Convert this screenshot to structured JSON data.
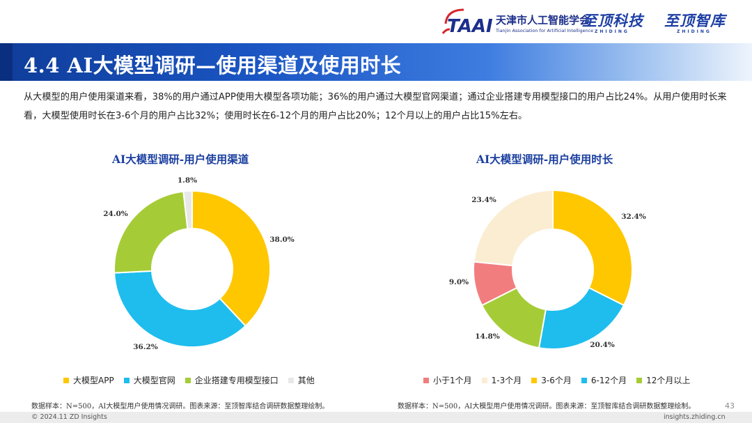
{
  "header": {
    "tjaai_name": "天津市人工智能学会",
    "tjaai_en": "Tianjin Association for Artificial Intelligence",
    "tjaai_mark": "TAAI",
    "brand1_cn": "至顶科技",
    "brand1_en": "ZHIDING",
    "brand2_cn": "至顶智库",
    "brand2_en": "ZHIDING"
  },
  "title": "4.4 AI大模型调研—使用渠道及使用时长",
  "summary": "从大模型的用户使用渠道来看，38%的用户通过APP使用大模型各项功能；36%的用户通过大模型官网渠道；通过企业搭建专用模型接口的用户占比24%。从用户使用时长来看，大模型使用时长在3-6个月的用户占比32%；使用时长在6-12个月的用户占比20%；12个月以上的用户占比15%左右。",
  "chart_data": [
    {
      "type": "pie",
      "title": "AI大模型调研-用户使用渠道",
      "categories": [
        "大模型APP",
        "大模型官网",
        "企业搭建专用模型接口",
        "其他"
      ],
      "values": [
        38.0,
        36.2,
        24.0,
        1.8
      ],
      "value_labels": [
        "38.0%",
        "36.2%",
        "24.0%",
        "1.8%"
      ],
      "colors": [
        "#FFC700",
        "#1EBDED",
        "#A5CC37",
        "#E8E8E8"
      ],
      "donut": true,
      "start": "12 o'clock",
      "direction": "clockwise",
      "legend": "bottom"
    },
    {
      "type": "pie",
      "title": "AI大模型调研-用户使用时长",
      "categories": [
        "小于1个月",
        "1-3个月",
        "3-6个月",
        "6-12个月",
        "12个月以上"
      ],
      "values": [
        9.0,
        23.4,
        32.4,
        20.4,
        14.8
      ],
      "value_labels": [
        "9.0%",
        "23.4%",
        "32.4%",
        "20.4%",
        "14.8%"
      ],
      "colors": [
        "#F27D7E",
        "#FBEDD2",
        "#FFC700",
        "#1EBDED",
        "#A5CC37"
      ],
      "donut": true,
      "start": "12 o'clock",
      "direction": "clockwise",
      "draw_order": [
        "3-6个月",
        "6-12个月",
        "12个月以上",
        "小于1个月",
        "1-3个月"
      ],
      "legend": "bottom"
    }
  ],
  "footnotes": [
    "数据样本：N=500，AI大模型用户使用情况调研。图表来源：至顶智库结合调研数据整理绘制。",
    "数据样本：N=500，AI大模型用户使用情况调研。图表来源：至顶智库结合调研数据整理绘制。"
  ],
  "page_number": "43",
  "copyright": "© 2024.11 ZD Insights",
  "site": "insights.zhiding.cn"
}
